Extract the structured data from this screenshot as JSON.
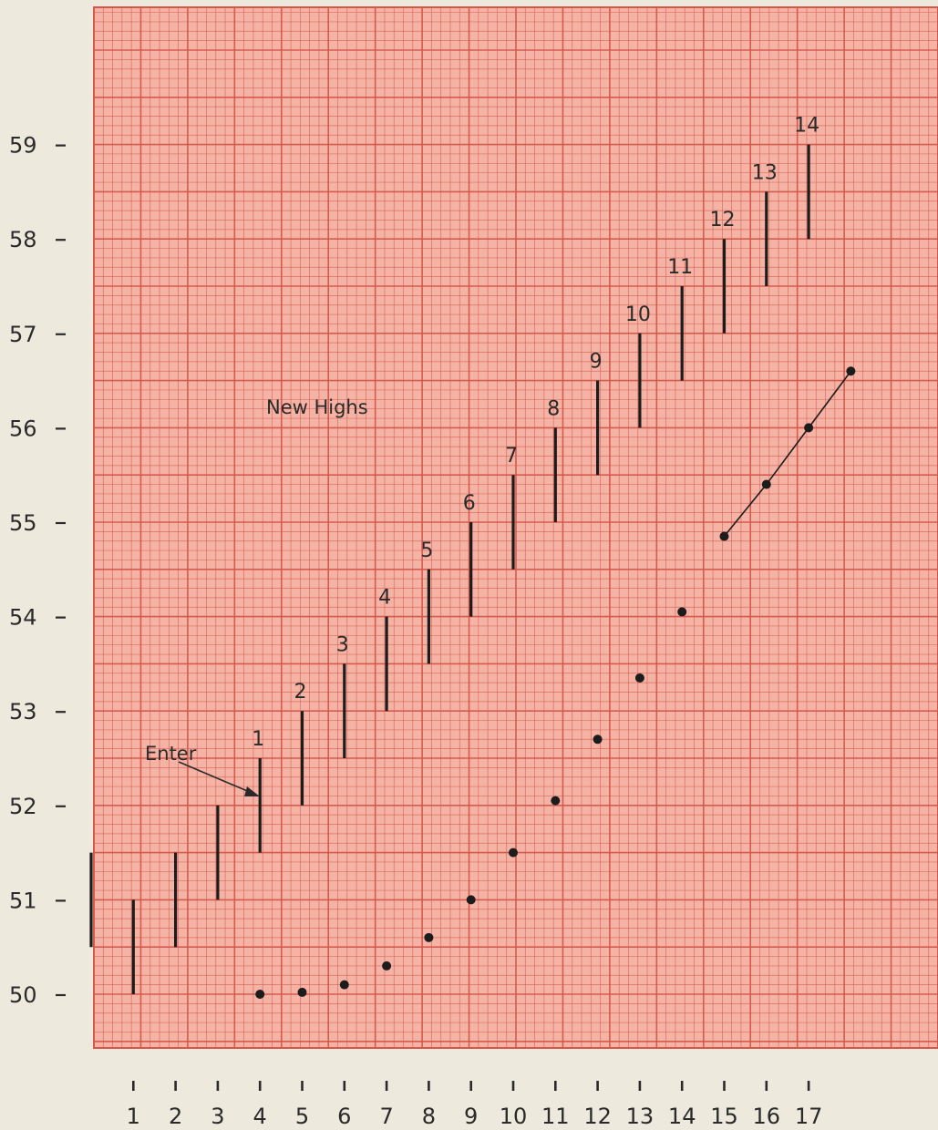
{
  "chart_data": {
    "type": "ohlc",
    "grid": true,
    "paper_color": "#f4b3a4",
    "grid_color": "#d4574a",
    "bar_color": "#1c1c1c",
    "ylim": [
      49.5,
      60.5
    ],
    "xlim": [
      0,
      19
    ],
    "yticks": [
      50,
      51,
      52,
      53,
      54,
      55,
      56,
      57,
      58,
      59
    ],
    "xticks": [
      1,
      2,
      3,
      4,
      5,
      6,
      7,
      8,
      9,
      10,
      11,
      12,
      13,
      14,
      15,
      16,
      17
    ],
    "bars": [
      {
        "x": 0,
        "low": 50.5,
        "high": 51.5,
        "label": ""
      },
      {
        "x": 1,
        "low": 50.0,
        "high": 51.0,
        "label": ""
      },
      {
        "x": 2,
        "low": 50.5,
        "high": 51.5,
        "label": ""
      },
      {
        "x": 3,
        "low": 51.0,
        "high": 52.0,
        "label": ""
      },
      {
        "x": 4,
        "low": 51.5,
        "high": 52.5,
        "label": "1"
      },
      {
        "x": 5,
        "low": 52.0,
        "high": 53.0,
        "label": "2"
      },
      {
        "x": 6,
        "low": 52.5,
        "high": 53.5,
        "label": "3"
      },
      {
        "x": 7,
        "low": 53.0,
        "high": 54.0,
        "label": "4"
      },
      {
        "x": 8,
        "low": 53.5,
        "high": 54.5,
        "label": "5"
      },
      {
        "x": 9,
        "low": 54.0,
        "high": 55.0,
        "label": "6"
      },
      {
        "x": 10,
        "low": 54.5,
        "high": 55.5,
        "label": "7"
      },
      {
        "x": 11,
        "low": 55.0,
        "high": 56.0,
        "label": "8"
      },
      {
        "x": 12,
        "low": 55.5,
        "high": 56.5,
        "label": "9"
      },
      {
        "x": 13,
        "low": 56.0,
        "high": 57.0,
        "label": "10"
      },
      {
        "x": 14,
        "low": 56.5,
        "high": 57.5,
        "label": "11"
      },
      {
        "x": 15,
        "low": 57.0,
        "high": 58.0,
        "label": "12"
      },
      {
        "x": 16,
        "low": 57.5,
        "high": 58.5,
        "label": "13"
      },
      {
        "x": 17,
        "low": 58.0,
        "high": 59.0,
        "label": "14"
      }
    ],
    "points": [
      {
        "x": 4,
        "y": 50.0
      },
      {
        "x": 5,
        "y": 50.02
      },
      {
        "x": 6,
        "y": 50.1
      },
      {
        "x": 7,
        "y": 50.3
      },
      {
        "x": 8,
        "y": 50.6
      },
      {
        "x": 9,
        "y": 51.0
      },
      {
        "x": 10,
        "y": 51.5
      },
      {
        "x": 11,
        "y": 52.05
      },
      {
        "x": 12,
        "y": 52.7
      },
      {
        "x": 13,
        "y": 53.35
      },
      {
        "x": 14,
        "y": 54.05
      },
      {
        "x": 15,
        "y": 54.85
      },
      {
        "x": 16,
        "y": 55.4
      },
      {
        "x": 17,
        "y": 56.0
      },
      {
        "x": 18,
        "y": 56.6
      }
    ],
    "connected_points": [
      {
        "x": 15,
        "y": 54.85
      },
      {
        "x": 16,
        "y": 55.4
      },
      {
        "x": 17,
        "y": 56.0
      },
      {
        "x": 18,
        "y": 56.6
      }
    ],
    "annotations": {
      "new_highs": "New Highs",
      "enter": "Enter"
    }
  }
}
